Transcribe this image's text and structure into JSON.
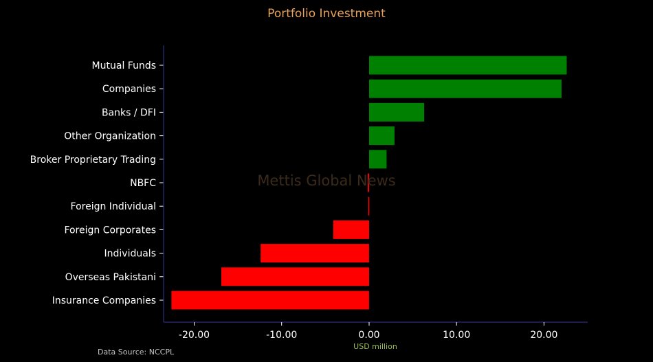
{
  "colors": {
    "background": "#000000",
    "title": "#e8a15a",
    "text": "#ffffff",
    "axis": "#2b2f7a",
    "positive": "#008000",
    "negative": "#ff0000",
    "xlabel": "#9bbf5a",
    "source": "#c8c8c8",
    "watermark": "#3b2a1a"
  },
  "chart_data": {
    "type": "bar",
    "orientation": "horizontal",
    "title": "Portfolio Investment",
    "xlabel": "USD million",
    "ylabel": "",
    "xlim": [
      -23.5,
      25.0
    ],
    "xticks": [
      -20,
      -10,
      0,
      10,
      20
    ],
    "xtick_labels": [
      "-20.00",
      "-10.00",
      "0.00",
      "10.00",
      "20.00"
    ],
    "grid": false,
    "categories": [
      "Mutual Funds",
      "Companies",
      "Banks / DFI",
      "Other Organization",
      "Broker Proprietary Trading",
      "NBFC",
      "Foreign Individual",
      "Foreign Corporates",
      "Individuals",
      "Overseas Pakistani",
      "Insurance Companies"
    ],
    "values": [
      22.6,
      22.0,
      6.3,
      2.9,
      2.0,
      -0.15,
      -0.1,
      -4.1,
      -12.4,
      -16.9,
      -22.6
    ]
  },
  "watermark": "Mettis Global News",
  "source_note": "Data Source: NCCPL"
}
